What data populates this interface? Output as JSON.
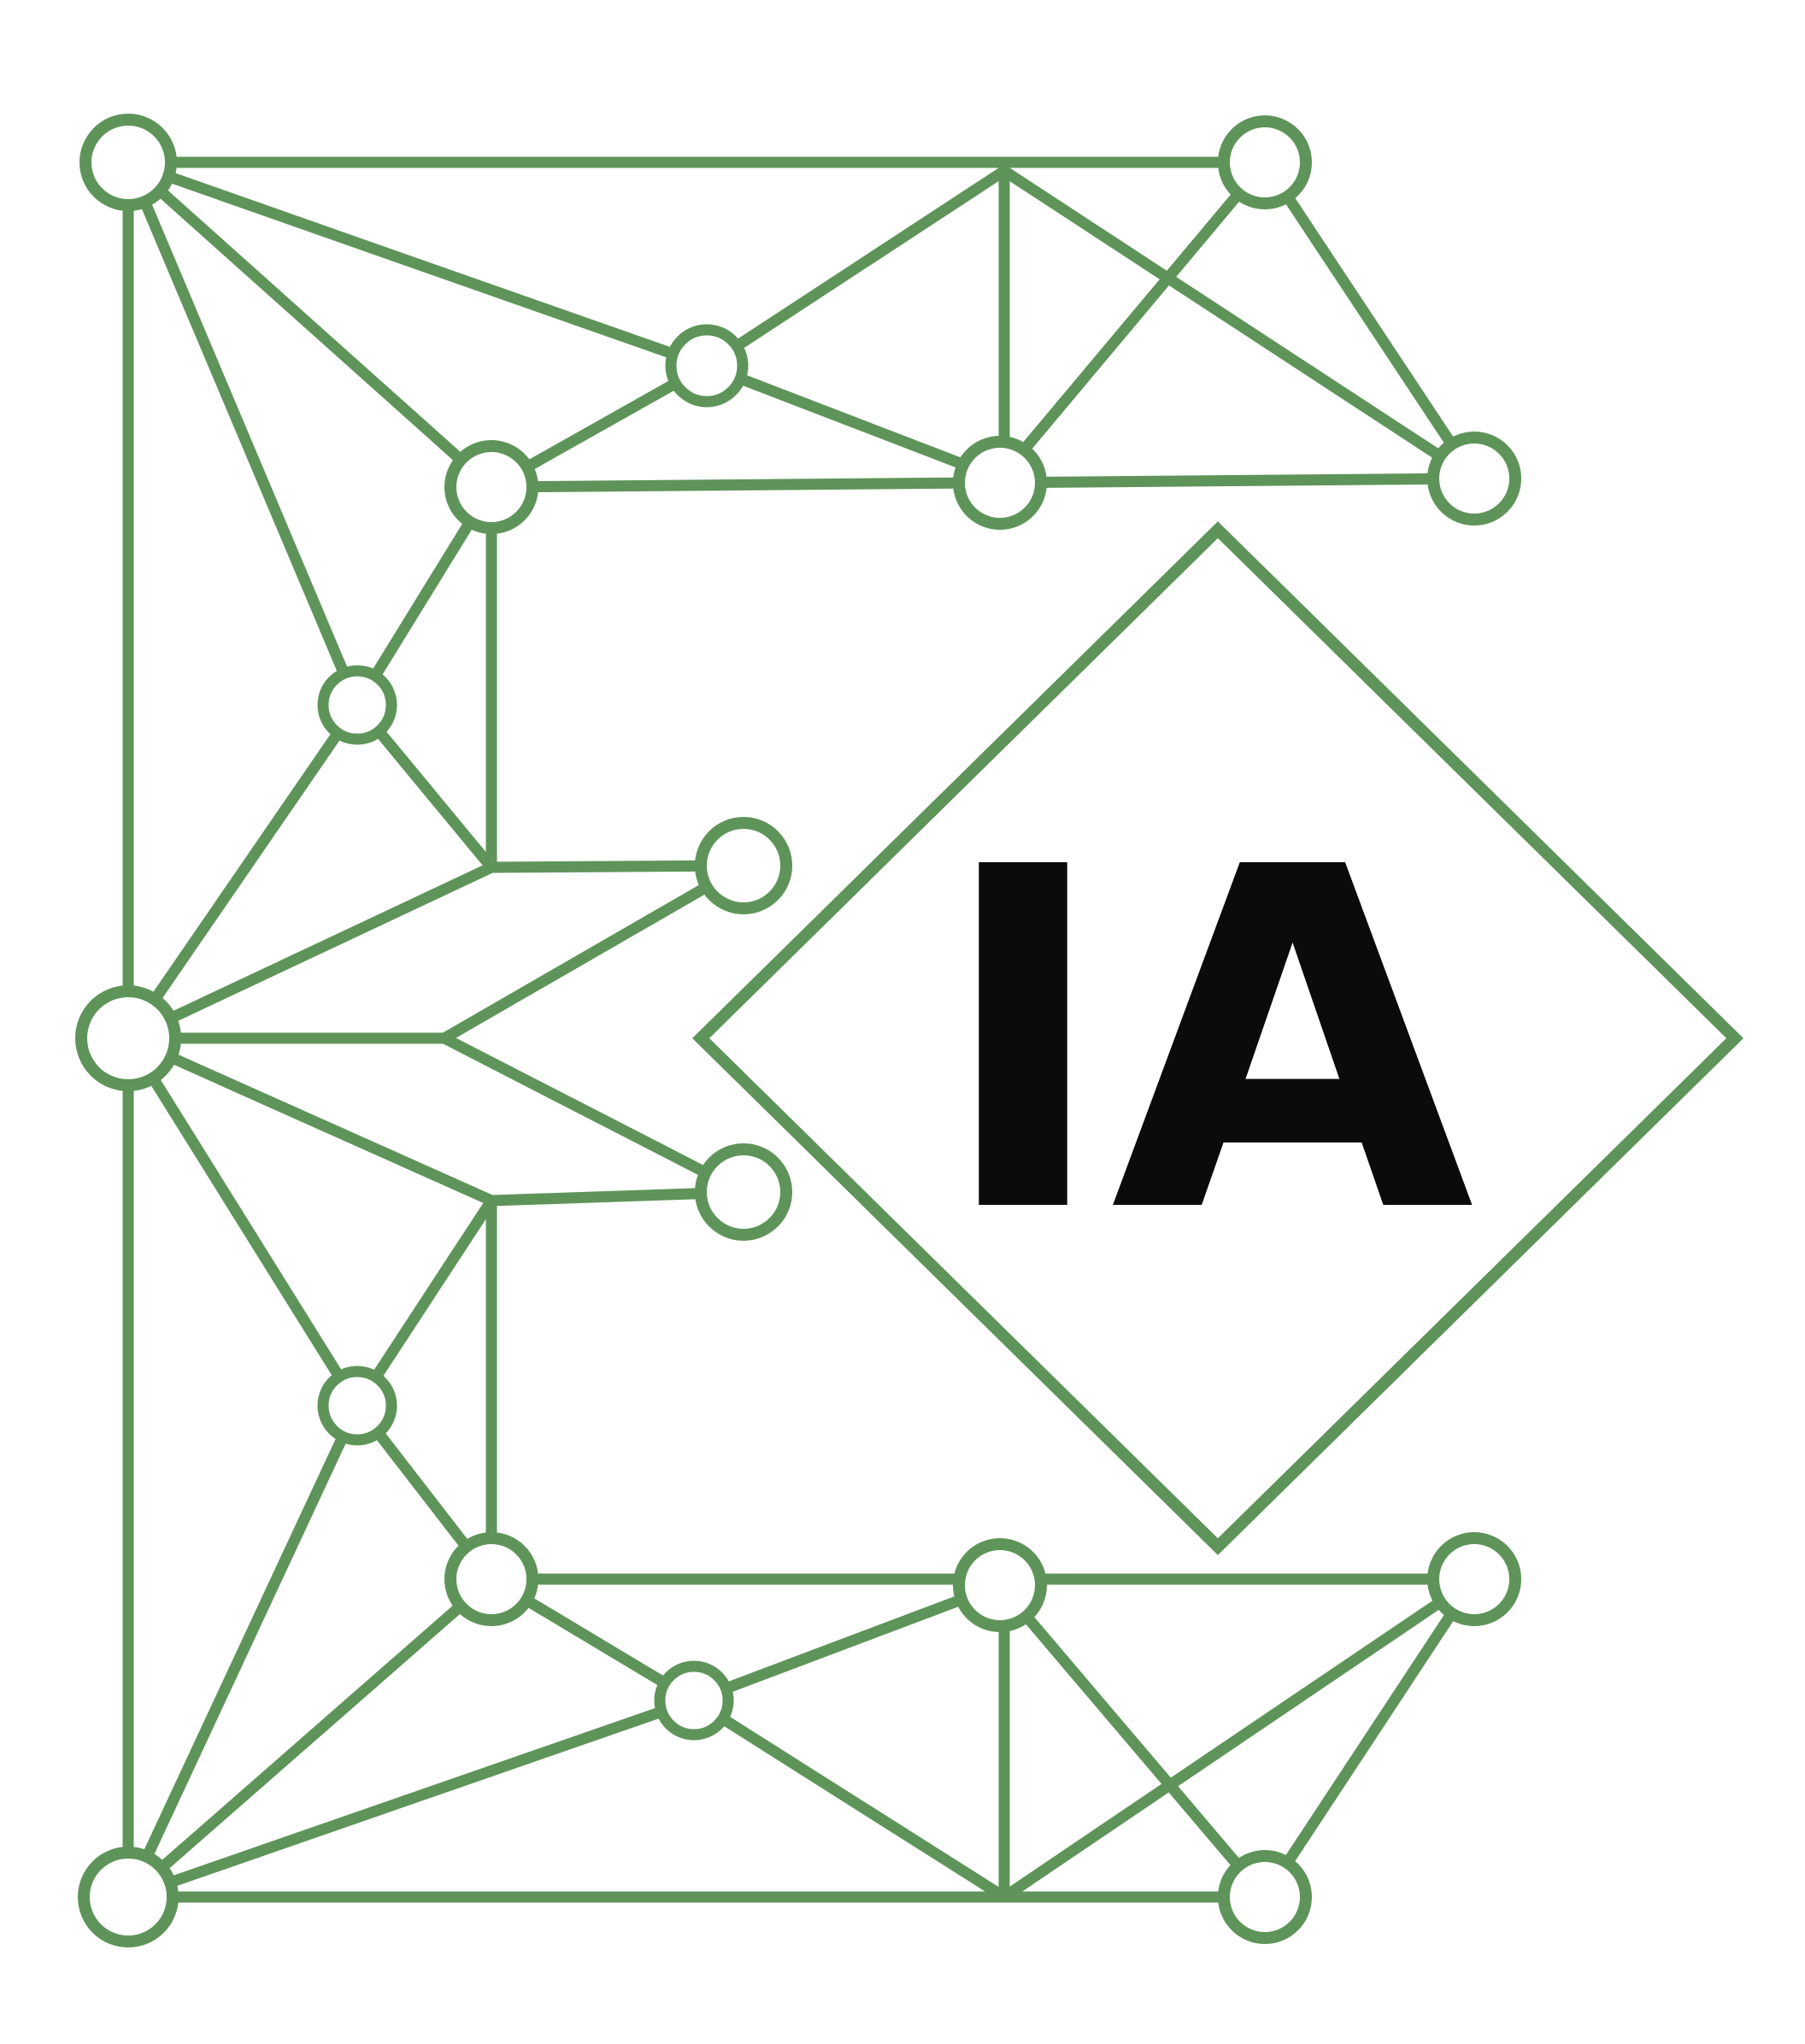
{
  "logo": {
    "text": "IA",
    "colors": {
      "network_green": "#5e9459",
      "text_black": "#0b0b0b",
      "background": "#ffffff"
    },
    "icon": "neural-network-letter-e-icon"
  }
}
